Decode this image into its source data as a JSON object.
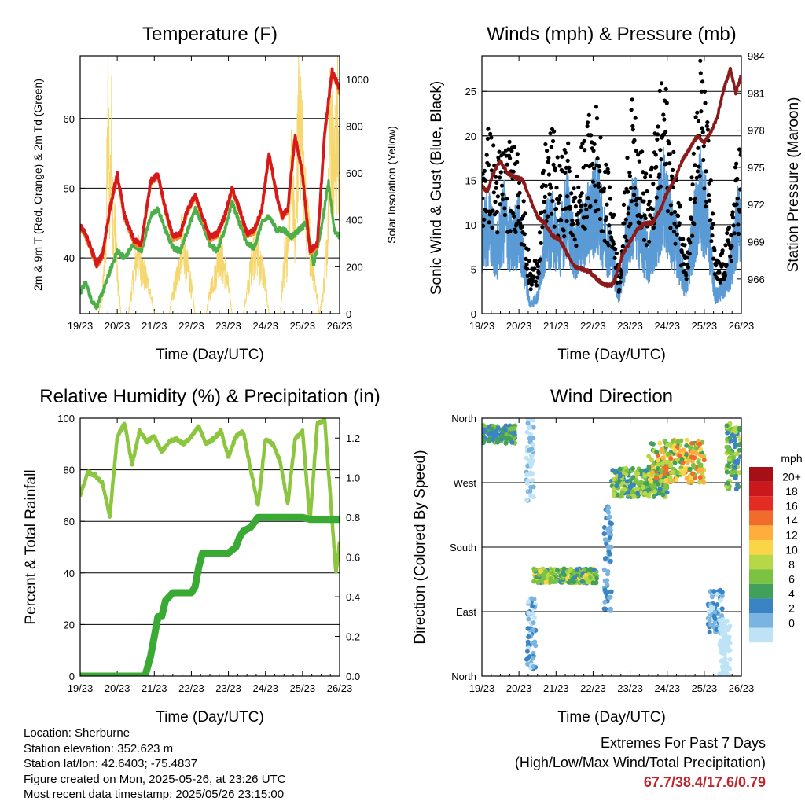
{
  "chart_data": [
    {
      "type": "line",
      "title": "Temperature (F)",
      "xlabel": "Time (Day/UTC)",
      "ylabel": "2m & 9m T (Red, Orange) & 2m Td (Green)",
      "y2label": "Solar Insolation (Yellow)",
      "x_ticks": [
        "19/23",
        "20/23",
        "21/23",
        "22/23",
        "23/23",
        "24/23",
        "25/23",
        "26/23"
      ],
      "ylim": [
        32,
        69
      ],
      "y_ticks": [
        40,
        50,
        60
      ],
      "y2lim": [
        0,
        1100
      ],
      "y2_ticks": [
        0,
        200,
        400,
        600,
        800,
        1000
      ],
      "colors": {
        "t2m": "#d7191c",
        "t9m": "#f28c28",
        "td": "#4daf4a",
        "solar": "#f5d76e"
      },
      "series": [
        {
          "key": "t2m",
          "x": [
            0,
            0.1,
            0.25,
            0.45,
            0.6,
            0.8,
            1.0,
            1.2,
            1.45,
            1.65,
            1.9,
            2.1,
            2.3,
            2.5,
            2.7,
            2.9,
            3.1,
            3.3,
            3.5,
            3.7,
            3.9,
            4.1,
            4.3,
            4.5,
            4.7,
            4.9,
            5.1,
            5.3,
            5.45,
            5.6,
            5.8,
            6.0,
            6.2,
            6.4,
            6.6,
            6.8,
            7.0
          ],
          "values": [
            44.5,
            44,
            42,
            39,
            40.5,
            47,
            52,
            46,
            42.5,
            42,
            51,
            52,
            47,
            43,
            43.5,
            47,
            49,
            46,
            43,
            43.5,
            46,
            50,
            47,
            43.5,
            44,
            47,
            55,
            49,
            46,
            47,
            57.5,
            52,
            41,
            42,
            58,
            67,
            64
          ]
        },
        {
          "key": "td",
          "x": [
            0,
            0.15,
            0.3,
            0.45,
            0.6,
            0.8,
            1.0,
            1.2,
            1.45,
            1.65,
            1.9,
            2.1,
            2.3,
            2.5,
            2.7,
            2.9,
            3.1,
            3.3,
            3.5,
            3.7,
            3.9,
            4.1,
            4.3,
            4.5,
            4.7,
            4.9,
            5.1,
            5.3,
            5.5,
            5.7,
            5.9,
            6.1,
            6.3,
            6.5,
            6.7,
            6.85,
            7.0
          ],
          "values": [
            35,
            36.5,
            34,
            33,
            35,
            38,
            41,
            40,
            42,
            41,
            46,
            47,
            44,
            41.5,
            41,
            44,
            47,
            45,
            42,
            41,
            44,
            48,
            45,
            42,
            41.5,
            45,
            46,
            44,
            44,
            43,
            44,
            45,
            39,
            44,
            51,
            44,
            43
          ]
        },
        {
          "key": "solar",
          "x": [
            0,
            0.5,
            0.6,
            0.7,
            0.75,
            0.8,
            0.85,
            0.9,
            0.95,
            1.0,
            1.1,
            1.3,
            1.45,
            1.55,
            1.65,
            1.75,
            1.85,
            2.0,
            2.4,
            2.55,
            2.65,
            2.75,
            2.85,
            2.95,
            3.1,
            3.4,
            3.55,
            3.65,
            3.75,
            3.85,
            3.95,
            4.1,
            4.4,
            4.55,
            4.65,
            4.75,
            4.85,
            4.95,
            5.1,
            5.4,
            5.5,
            5.6,
            5.7,
            5.8,
            5.9,
            6.1,
            6.45,
            6.55,
            6.65,
            6.75,
            6.85,
            6.95,
            7.0
          ],
          "values": [
            0,
            0,
            100,
            400,
            1000,
            600,
            900,
            350,
            500,
            200,
            0,
            0,
            200,
            300,
            250,
            180,
            150,
            0,
            0,
            150,
            200,
            420,
            260,
            200,
            0,
            0,
            160,
            200,
            350,
            250,
            200,
            0,
            0,
            160,
            300,
            340,
            260,
            200,
            0,
            0,
            250,
            300,
            700,
            400,
            1020,
            500,
            0,
            100,
            300,
            1000,
            700,
            950,
            400
          ]
        }
      ]
    },
    {
      "type": "line",
      "title": "Winds (mph) & Pressure (mb)",
      "xlabel": "Time (Day/UTC)",
      "ylabel": "Sonic Wind & Gust (Blue, Black)",
      "y2label": "Station Pressure (Maroon)",
      "x_ticks": [
        "19/23",
        "20/23",
        "21/23",
        "22/23",
        "23/23",
        "24/23",
        "25/23",
        "26/23"
      ],
      "ylim": [
        0,
        29
      ],
      "y_ticks": [
        0,
        5,
        10,
        15,
        20,
        25
      ],
      "y2lim": [
        963.2,
        984
      ],
      "y2_ticks": [
        966,
        969,
        972,
        975,
        978,
        981,
        984
      ],
      "colors": {
        "wind": "#5b9bd5",
        "gust": "#000000",
        "pressure": "#8b1a1a"
      },
      "series": [
        {
          "key": "wind",
          "x": [
            0,
            0.2,
            0.4,
            0.6,
            0.8,
            1.0,
            1.15,
            1.3,
            1.5,
            1.7,
            1.9,
            2.1,
            2.3,
            2.5,
            2.7,
            2.9,
            3.1,
            3.3,
            3.5,
            3.7,
            3.9,
            4.1,
            4.3,
            4.5,
            4.7,
            4.9,
            5.1,
            5.3,
            5.5,
            5.7,
            5.9,
            6.1,
            6.3,
            6.5,
            6.7,
            6.9,
            7.0
          ],
          "values": [
            9,
            10,
            7,
            11,
            8,
            10,
            5,
            1,
            2,
            9,
            10,
            8,
            12,
            7,
            9,
            11,
            13,
            9,
            7,
            2,
            8,
            12,
            9,
            6,
            10,
            14,
            10,
            7,
            3,
            9,
            14,
            10,
            2,
            3,
            5,
            11,
            10
          ]
        },
        {
          "key": "gust",
          "x": [
            0,
            0.2,
            0.4,
            0.6,
            0.8,
            1.0,
            1.15,
            1.3,
            1.5,
            1.7,
            1.9,
            2.1,
            2.3,
            2.5,
            2.7,
            2.9,
            3.1,
            3.3,
            3.5,
            3.7,
            3.9,
            4.1,
            4.3,
            4.5,
            4.7,
            4.9,
            5.1,
            5.3,
            5.5,
            5.7,
            5.9,
            6.1,
            6.3,
            6.5,
            6.7,
            6.9,
            7.0
          ],
          "values": [
            16,
            18,
            15,
            17,
            16,
            17,
            10,
            4,
            6,
            16,
            18,
            14,
            17,
            12,
            16,
            19,
            20,
            15,
            12,
            4,
            14,
            22,
            16,
            12,
            18,
            24,
            17,
            12,
            6,
            16,
            25,
            18,
            5,
            6,
            9,
            16,
            17
          ]
        },
        {
          "key": "pressure",
          "x": [
            0,
            0.15,
            0.3,
            0.5,
            0.7,
            0.9,
            1.1,
            1.3,
            1.5,
            1.7,
            1.9,
            2.1,
            2.3,
            2.5,
            2.7,
            2.9,
            3.1,
            3.3,
            3.5,
            3.6,
            3.7,
            3.8,
            4.0,
            4.2,
            4.4,
            4.6,
            4.8,
            5.0,
            5.2,
            5.4,
            5.6,
            5.8,
            6.0,
            6.2,
            6.35,
            6.5,
            6.6,
            6.7,
            6.85,
            7.0
          ],
          "values": [
            973.5,
            973,
            974.5,
            975.5,
            974.5,
            974.2,
            974,
            972.5,
            971,
            970.5,
            969.5,
            969.2,
            968,
            967,
            966.8,
            966.6,
            966,
            965.5,
            965.5,
            966,
            967,
            968,
            969,
            970,
            970.5,
            970.5,
            971.5,
            973,
            974,
            975.5,
            976.5,
            977.5,
            977,
            978,
            979,
            981,
            982,
            983,
            981,
            982.5
          ]
        }
      ]
    },
    {
      "type": "line",
      "title": "Relative Humidity (%) & Precipitation (in)",
      "xlabel": "Time (Day/UTC)",
      "ylabel": "Percent & Total Rainfall",
      "x_ticks": [
        "19/23",
        "20/23",
        "21/23",
        "22/23",
        "23/23",
        "24/23",
        "25/23",
        "26/23"
      ],
      "ylim": [
        0,
        100
      ],
      "y_ticks": [
        0,
        20,
        40,
        60,
        80,
        100
      ],
      "y2lim": [
        0,
        1.3
      ],
      "y2_ticks": [
        "0.0",
        "0.2",
        "0.4",
        "0.6",
        "0.8",
        "1.0",
        "1.2"
      ],
      "colors": {
        "rh": "#8cc63f",
        "precip": "#3aaa35"
      },
      "series": [
        {
          "key": "rh",
          "x": [
            0,
            0.2,
            0.4,
            0.6,
            0.8,
            1.0,
            1.2,
            1.4,
            1.6,
            1.8,
            2.0,
            2.2,
            2.4,
            2.6,
            2.8,
            3.0,
            3.2,
            3.4,
            3.6,
            3.8,
            4.0,
            4.2,
            4.4,
            4.6,
            4.8,
            5.0,
            5.2,
            5.4,
            5.6,
            5.8,
            6.0,
            6.2,
            6.4,
            6.6,
            6.8,
            6.9,
            7.0
          ],
          "values": [
            70,
            79,
            78,
            75,
            62,
            93,
            98,
            82,
            95,
            91,
            93,
            87,
            91,
            92,
            90,
            93,
            97,
            90,
            92,
            95,
            85,
            93,
            95,
            80,
            66,
            92,
            90,
            83,
            67,
            92,
            95,
            60,
            98,
            99,
            60,
            40,
            52
          ]
        },
        {
          "key": "precip",
          "x": [
            0,
            0.5,
            1.0,
            1.5,
            1.75,
            1.9,
            2.0,
            2.1,
            2.2,
            2.3,
            2.5,
            2.8,
            3.0,
            3.1,
            3.2,
            3.3,
            3.5,
            3.8,
            4.0,
            4.2,
            4.3,
            4.4,
            4.6,
            4.8,
            5.0,
            5.2,
            5.4,
            5.6,
            5.8,
            6.0,
            6.2,
            6.5,
            7.0
          ],
          "values": [
            0,
            0,
            0,
            0,
            0,
            0.1,
            0.2,
            0.3,
            0.3,
            0.38,
            0.42,
            0.42,
            0.42,
            0.45,
            0.55,
            0.62,
            0.62,
            0.62,
            0.62,
            0.65,
            0.7,
            0.73,
            0.75,
            0.8,
            0.8,
            0.8,
            0.8,
            0.8,
            0.8,
            0.8,
            0.79,
            0.79,
            0.79
          ]
        }
      ]
    },
    {
      "type": "scatter",
      "title": "Wind Direction",
      "xlabel": "Time (Day/UTC)",
      "ylabel": "Direction (Colored By Speed)",
      "x_ticks": [
        "19/23",
        "20/23",
        "21/23",
        "22/23",
        "23/23",
        "24/23",
        "25/23",
        "26/23"
      ],
      "y_ticks": [
        "North",
        "East",
        "South",
        "West",
        "North"
      ],
      "ylim": [
        0,
        360
      ],
      "colorbar": {
        "title": "mph",
        "labels": [
          "20+",
          "18",
          "16",
          "14",
          "12",
          "10",
          "8",
          "6",
          "4",
          "2",
          "0"
        ],
        "colors": [
          "#a50f15",
          "#cb181d",
          "#e32d22",
          "#f16b2b",
          "#fdae3d",
          "#fbd548",
          "#b7d846",
          "#7bc142",
          "#41a05a",
          "#3b84c4",
          "#7ab4e0",
          "#bfe3f6"
        ]
      },
      "clusters": [
        {
          "x0": 0.0,
          "x1": 0.9,
          "d0": 325,
          "d1": 350,
          "s0": 4,
          "s1": 10
        },
        {
          "x0": 1.2,
          "x1": 1.4,
          "d0": 240,
          "d1": 360,
          "s0": 0,
          "s1": 3
        },
        {
          "x0": 1.2,
          "x1": 1.45,
          "d0": 10,
          "d1": 110,
          "s0": 0,
          "s1": 6
        },
        {
          "x0": 1.4,
          "x1": 3.1,
          "d0": 130,
          "d1": 150,
          "s0": 5,
          "s1": 13
        },
        {
          "x0": 3.3,
          "x1": 3.5,
          "d0": 90,
          "d1": 240,
          "s0": 2,
          "s1": 6
        },
        {
          "x0": 3.5,
          "x1": 5.0,
          "d0": 250,
          "d1": 290,
          "s0": 4,
          "s1": 12
        },
        {
          "x0": 4.5,
          "x1": 6.0,
          "d0": 270,
          "d1": 330,
          "s0": 6,
          "s1": 18
        },
        {
          "x0": 6.1,
          "x1": 6.5,
          "d0": 60,
          "d1": 120,
          "s0": 1,
          "s1": 6
        },
        {
          "x0": 6.4,
          "x1": 6.7,
          "d0": 0,
          "d1": 80,
          "s0": 0,
          "s1": 2
        },
        {
          "x0": 6.6,
          "x1": 7.0,
          "d0": 260,
          "d1": 355,
          "s0": 4,
          "s1": 12
        }
      ]
    }
  ],
  "info": {
    "location": "Location: Sherburne",
    "elevation": "Station elevation: 352.623 m",
    "latlon": "Station lat/lon: 42.6403; -75.4837",
    "created": "Figure created on Mon, 2025-05-26, at 23:26 UTC",
    "latest": "Most recent data timestamp: 2025/05/26 23:15:00"
  },
  "extremes": {
    "line1": "Extremes For Past 7 Days",
    "line2": "(High/Low/Max Wind/Total Precipitation)",
    "values": "67.7/38.4/17.6/0.79"
  }
}
